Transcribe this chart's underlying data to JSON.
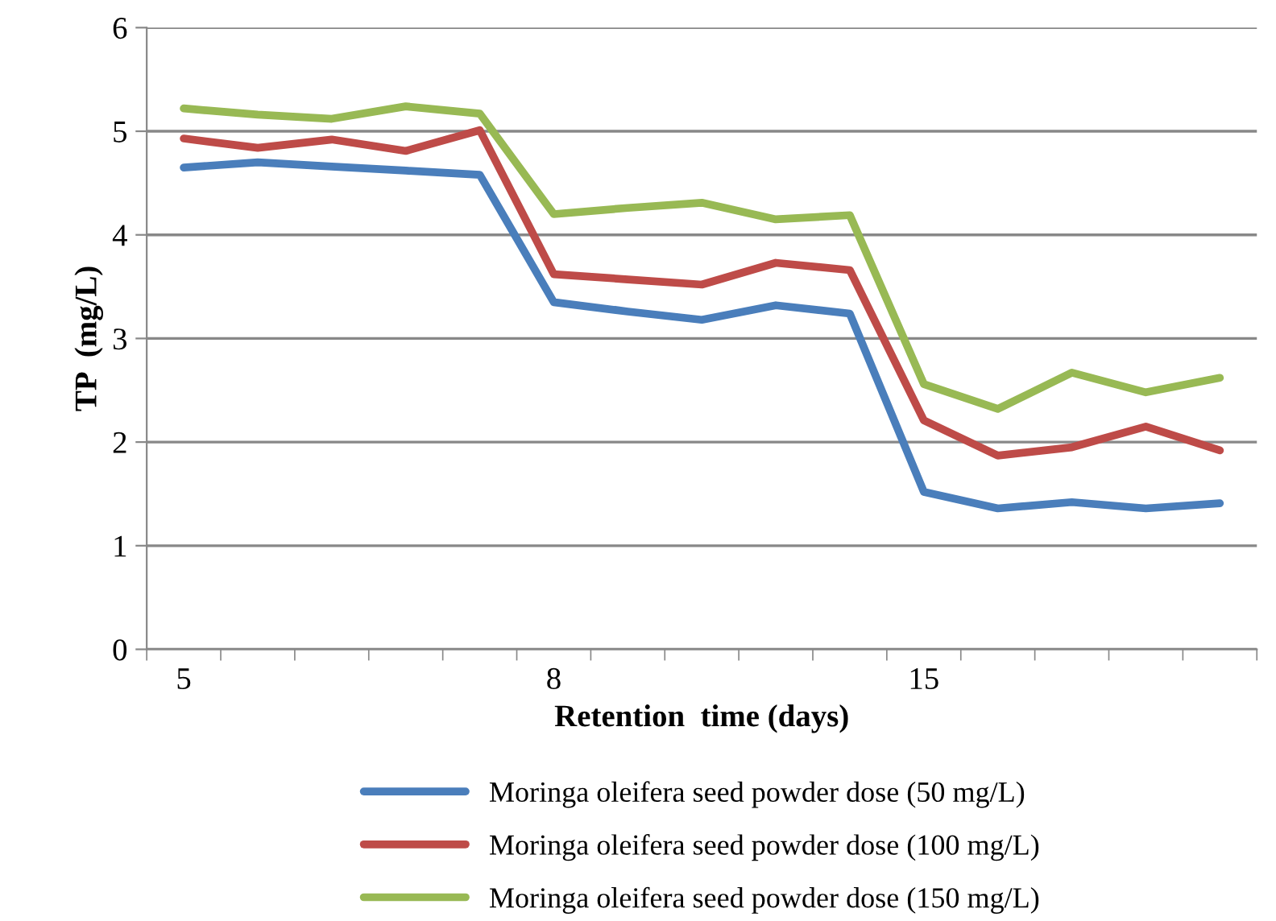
{
  "chart_data": {
    "type": "line",
    "xlabel": "Retention  time (days)",
    "ylabel": "TP  (mg/L)",
    "categories": [
      "5",
      null,
      null,
      null,
      null,
      "8",
      null,
      null,
      null,
      null,
      "15",
      null,
      null,
      null,
      null
    ],
    "series": [
      {
        "name": "Moringa oleifera seed powder dose (50 mg/L)",
        "color": "#4a7ebb",
        "values": [
          4.65,
          4.7,
          4.66,
          4.62,
          4.58,
          3.35,
          3.26,
          3.18,
          3.32,
          3.24,
          1.52,
          1.36,
          1.42,
          1.36,
          1.41
        ]
      },
      {
        "name": "Moringa oleifera seed powder dose (100 mg/L)",
        "color": "#be4b48",
        "values": [
          4.93,
          4.84,
          4.92,
          4.81,
          5.01,
          3.62,
          3.57,
          3.52,
          3.73,
          3.66,
          2.21,
          1.87,
          1.95,
          2.15,
          1.92
        ]
      },
      {
        "name": "Moringa oleifera seed powder dose (150 mg/L)",
        "color": "#98b954",
        "values": [
          5.22,
          5.16,
          5.12,
          5.24,
          5.17,
          4.2,
          4.26,
          4.31,
          4.15,
          4.19,
          2.56,
          2.32,
          2.67,
          2.48,
          2.62
        ]
      }
    ],
    "ylim": [
      0,
      6
    ],
    "yticks": [
      0,
      1,
      2,
      3,
      4,
      5,
      6
    ],
    "grid": "y",
    "legend": "bottom",
    "marker": "none",
    "line_style": "solid"
  }
}
